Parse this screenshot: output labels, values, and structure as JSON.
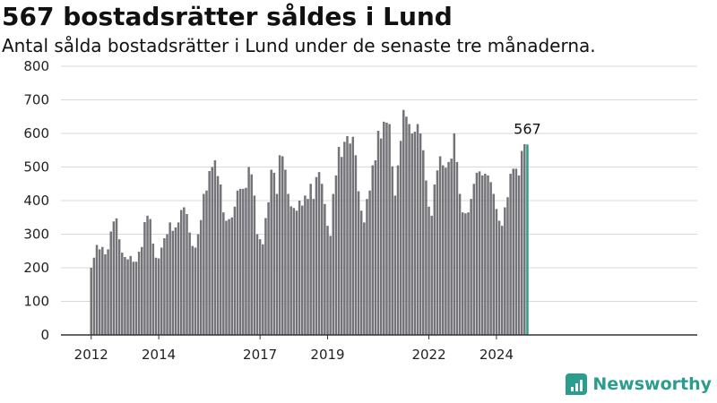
{
  "header": {
    "title": "567 bostadsrätter såldes i Lund",
    "subtitle": "Antal sålda bostadsrätter i Lund under de senaste tre månaderna."
  },
  "logo": {
    "text": "Newsworthy",
    "icon": "newsworthy-bar-icon"
  },
  "colors": {
    "bar": "#747378",
    "highlight": "#2a9d8f",
    "grid": "#d9d9d9",
    "axis": "#333333"
  },
  "chart_data": {
    "type": "bar",
    "title": "567 bostadsrätter såldes i Lund",
    "subtitle": "Antal sålda bostadsrätter i Lund under de senaste tre månaderna.",
    "xlabel": "",
    "ylabel": "",
    "ylim": [
      0,
      800
    ],
    "yticks": [
      0,
      100,
      200,
      300,
      400,
      500,
      600,
      700,
      800
    ],
    "xticks": [
      "2012",
      "2014",
      "2017",
      "2019",
      "2022",
      "2024"
    ],
    "x_start": "2012-01",
    "x_end": "2025-01",
    "grid": true,
    "highlight_label": "567",
    "values": [
      200,
      230,
      268,
      255,
      262,
      240,
      255,
      308,
      338,
      347,
      285,
      245,
      232,
      225,
      235,
      218,
      218,
      248,
      262,
      336,
      355,
      345,
      272,
      230,
      228,
      260,
      288,
      300,
      335,
      310,
      320,
      335,
      372,
      380,
      360,
      305,
      265,
      260,
      300,
      342,
      420,
      430,
      488,
      500,
      520,
      473,
      448,
      365,
      340,
      345,
      350,
      382,
      430,
      435,
      435,
      438,
      500,
      478,
      415,
      300,
      285,
      270,
      348,
      395,
      492,
      483,
      420,
      535,
      532,
      492,
      420,
      383,
      378,
      370,
      400,
      385,
      415,
      405,
      450,
      405,
      470,
      485,
      450,
      390,
      325,
      295,
      420,
      475,
      560,
      530,
      575,
      592,
      570,
      590,
      535,
      428,
      370,
      335,
      405,
      430,
      505,
      520,
      608,
      585,
      635,
      632,
      628,
      502,
      415,
      505,
      578,
      670,
      650,
      628,
      600,
      605,
      628,
      600,
      550,
      460,
      382,
      355,
      448,
      490,
      532,
      505,
      498,
      515,
      525,
      600,
      515,
      420,
      365,
      362,
      365,
      405,
      450,
      483,
      487,
      475,
      480,
      475,
      455,
      420,
      375,
      340,
      325,
      380,
      410,
      480,
      495,
      495,
      475,
      548,
      568,
      567
    ]
  }
}
